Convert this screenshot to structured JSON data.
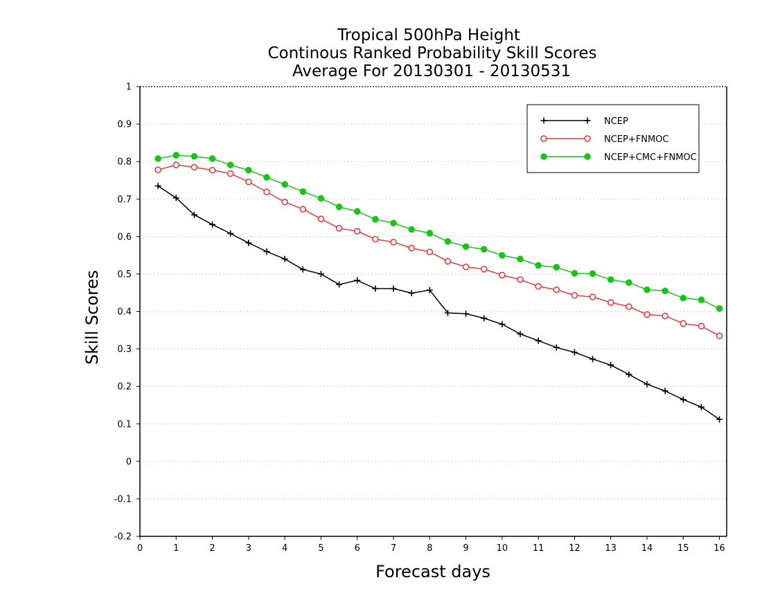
{
  "chart_data": {
    "type": "line",
    "title_lines": [
      "Tropical 500hPa Height",
      "Continous Ranked Probability Skill Scores",
      "Average For 20130301 - 20130531"
    ],
    "xlabel": "Forecast days",
    "ylabel": "Skill Scores",
    "xlim": [
      0,
      16.2
    ],
    "ylim": [
      -0.2,
      1
    ],
    "xticks": [
      "0",
      "1",
      "2",
      "3",
      "4",
      "5",
      "6",
      "7",
      "8",
      "9",
      "10",
      "11",
      "12",
      "13",
      "14",
      "15",
      "16"
    ],
    "yticks": [
      "-0.2",
      "-0.1",
      "0",
      "0.1",
      "0.2",
      "0.3",
      "0.4",
      "0.5",
      "0.6",
      "0.7",
      "0.8",
      "0.9",
      "1"
    ],
    "grid": "horizontal dotted",
    "legend_position": "top-right",
    "x": [
      0.5,
      1,
      1.5,
      2,
      2.5,
      3,
      3.5,
      4,
      4.5,
      5,
      5.5,
      6,
      6.5,
      7,
      7.5,
      8,
      8.5,
      9,
      9.5,
      10,
      10.5,
      11,
      11.5,
      12,
      12.5,
      13,
      13.5,
      14,
      14.5,
      15,
      15.5,
      16
    ],
    "series": [
      {
        "name": "NCEP",
        "color": "#000000",
        "marker": "plus",
        "values": [
          0.735,
          0.703,
          0.658,
          0.632,
          0.608,
          0.583,
          0.56,
          0.54,
          0.512,
          0.5,
          0.472,
          0.483,
          0.461,
          0.461,
          0.449,
          0.457,
          0.396,
          0.394,
          0.382,
          0.366,
          0.34,
          0.322,
          0.304,
          0.291,
          0.273,
          0.257,
          0.232,
          0.206,
          0.188,
          0.165,
          0.145,
          0.112
        ]
      },
      {
        "name": "NCEP+FNMOC",
        "color": "#e8393a",
        "marker": "open-circle",
        "values": [
          0.778,
          0.791,
          0.785,
          0.777,
          0.768,
          0.746,
          0.719,
          0.692,
          0.673,
          0.647,
          0.622,
          0.614,
          0.593,
          0.585,
          0.569,
          0.559,
          0.534,
          0.519,
          0.513,
          0.497,
          0.485,
          0.467,
          0.458,
          0.443,
          0.439,
          0.424,
          0.413,
          0.392,
          0.388,
          0.368,
          0.361,
          0.335
        ]
      },
      {
        "name": "NCEP+CMC+FNMOC",
        "color": "#19c419",
        "marker": "filled-circle",
        "values": [
          0.808,
          0.817,
          0.814,
          0.808,
          0.791,
          0.777,
          0.758,
          0.739,
          0.72,
          0.702,
          0.679,
          0.667,
          0.646,
          0.636,
          0.619,
          0.609,
          0.587,
          0.573,
          0.566,
          0.55,
          0.54,
          0.523,
          0.518,
          0.502,
          0.501,
          0.485,
          0.477,
          0.458,
          0.455,
          0.436,
          0.431,
          0.408
        ]
      }
    ]
  }
}
